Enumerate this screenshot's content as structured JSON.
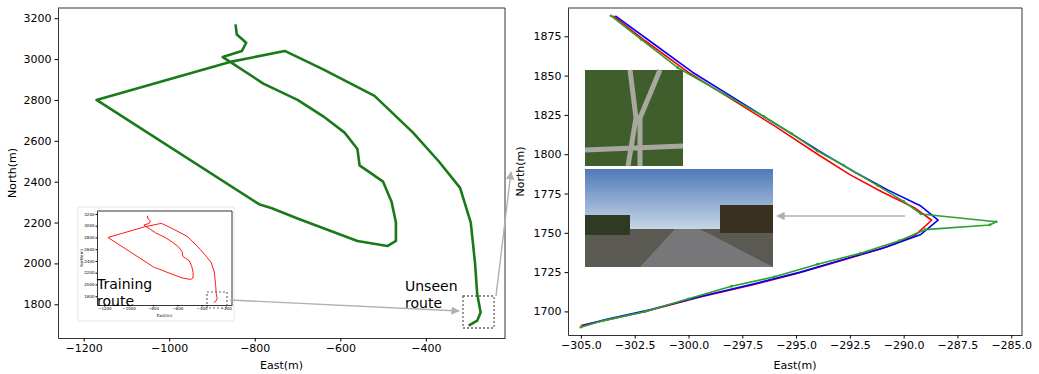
{
  "chart_data": [
    {
      "type": "line",
      "x_label": "East(m)",
      "y_label": "North(m)",
      "xlim": [
        -1260,
        -215
      ],
      "ylim": [
        1635,
        3250
      ],
      "xticks": [
        {
          "value": -1200,
          "label": "−1200"
        },
        {
          "value": -1000,
          "label": "−1000"
        },
        {
          "value": -800,
          "label": "−800"
        },
        {
          "value": -600,
          "label": "−600"
        },
        {
          "value": -400,
          "label": "−400"
        }
      ],
      "yticks": [
        1800,
        2000,
        2200,
        2400,
        2600,
        2800,
        3000,
        3200
      ],
      "annotations": [
        {
          "text": "Unseen\nroute"
        }
      ],
      "series": [
        {
          "color": "#1a7a1a",
          "x": [
            -845,
            -842,
            -820,
            -830,
            -875,
            -860,
            -780,
            -700,
            -640,
            -590,
            -560,
            -555,
            -500,
            -480,
            -470,
            -470,
            -490,
            -560,
            -700,
            -760,
            -790,
            -1170,
            -860,
            -730,
            -640,
            -520,
            -430,
            -370,
            -320,
            -295,
            -285,
            -280,
            -272,
            -280,
            -300
          ],
          "values": [
            3170,
            3120,
            3080,
            3040,
            3010,
            2990,
            2880,
            2800,
            2720,
            2640,
            2560,
            2480,
            2400,
            2300,
            2200,
            2110,
            2085,
            2110,
            2220,
            2270,
            2290,
            2800,
            2985,
            3040,
            2950,
            2820,
            2640,
            2500,
            2370,
            2200,
            2000,
            1850,
            1760,
            1720,
            1695
          ]
        }
      ]
    },
    {
      "type": "line",
      "x_label": "East(m)",
      "y_label": "North(m)",
      "xlim": [
        -1260,
        -150
      ],
      "ylim": [
        1650,
        3250
      ],
      "xticks": [
        {
          "value": -1200,
          "label": "−1200"
        },
        {
          "value": -1000,
          "label": "−1000"
        },
        {
          "value": -800,
          "label": "−800"
        },
        {
          "value": -600,
          "label": "−600"
        },
        {
          "value": -400,
          "label": "−400"
        },
        {
          "value": -200,
          "label": "−200"
        }
      ],
      "yticks": [
        1800,
        2000,
        2200,
        2400,
        2600,
        2800,
        3000,
        3200
      ],
      "annotations": [
        {
          "text": "Training\nroute"
        }
      ],
      "series": [
        {
          "color": "#ff0000",
          "x": [
            -845,
            -842,
            -820,
            -830,
            -875,
            -860,
            -780,
            -700,
            -640,
            -590,
            -560,
            -555,
            -500,
            -480,
            -470,
            -470,
            -490,
            -560,
            -700,
            -760,
            -790,
            -1170,
            -860,
            -730,
            -640,
            -520,
            -430,
            -370,
            -320,
            -295,
            -285,
            -280,
            -272,
            -280,
            -300
          ],
          "values": [
            3170,
            3120,
            3080,
            3040,
            3010,
            2990,
            2880,
            2800,
            2720,
            2640,
            2560,
            2480,
            2400,
            2300,
            2200,
            2110,
            2085,
            2110,
            2220,
            2270,
            2290,
            2800,
            2985,
            3040,
            2950,
            2820,
            2640,
            2500,
            2370,
            2200,
            2000,
            1850,
            1760,
            1720,
            1695
          ]
        }
      ]
    },
    {
      "type": "line",
      "x_label": "East(m)",
      "y_label": "North(m)",
      "xlim": [
        -305.6,
        -284.5
      ],
      "ylim": [
        1685,
        1893
      ],
      "xticks": [
        {
          "value": -305,
          "label": "−305.0"
        },
        {
          "value": -302.5,
          "label": "−302.5"
        },
        {
          "value": -300,
          "label": "−300.0"
        },
        {
          "value": -297.5,
          "label": "−297.5"
        },
        {
          "value": -295,
          "label": "−295.0"
        },
        {
          "value": -292.5,
          "label": "−292.5"
        },
        {
          "value": -290,
          "label": "−290.0"
        },
        {
          "value": -287.5,
          "label": "−287.5"
        },
        {
          "value": -285,
          "label": "−285.0"
        }
      ],
      "yticks": [
        1700,
        1725,
        1750,
        1775,
        1800,
        1825,
        1850,
        1875
      ],
      "series": [
        {
          "color": "#ff0000",
          "x": [
            -303.5,
            -302,
            -300,
            -298,
            -296,
            -294,
            -292.5,
            -291,
            -289.5,
            -288.7,
            -289.5,
            -291,
            -293,
            -295,
            -297,
            -299.5,
            -302,
            -304,
            -305
          ],
          "values": [
            1888,
            1872,
            1852,
            1835,
            1818,
            1800,
            1787,
            1776,
            1766,
            1758,
            1748,
            1740,
            1732,
            1724,
            1717,
            1709,
            1700,
            1694,
            1691
          ]
        },
        {
          "color": "#0000ff",
          "x": [
            -303.4,
            -301.8,
            -299.8,
            -297.8,
            -295.8,
            -293.8,
            -292.2,
            -290.7,
            -289.2,
            -288.4,
            -289.2,
            -290.8,
            -292.8,
            -294.8,
            -296.8,
            -299.3,
            -301.8,
            -303.8,
            -304.9
          ],
          "values": [
            1888,
            1872,
            1852,
            1835,
            1818,
            1801,
            1788,
            1777,
            1767,
            1758,
            1749,
            1741,
            1733,
            1725,
            1718,
            1710,
            1701,
            1695,
            1691
          ]
        },
        {
          "color": "#2ca02c",
          "marker": "o",
          "x": [
            -303.6,
            -302.2,
            -300.5,
            -298.3,
            -296.5,
            -295.2,
            -294,
            -292.8,
            -291.2,
            -290,
            -289.2,
            -285.7,
            -286,
            -289,
            -290.2,
            -292,
            -294,
            -296,
            -298,
            -300,
            -302,
            -304,
            -305
          ],
          "values": [
            1888,
            1873,
            1855,
            1838,
            1824,
            1813,
            1802,
            1793,
            1780,
            1770,
            1762,
            1757,
            1755,
            1752,
            1745,
            1737,
            1730,
            1722,
            1716,
            1708,
            1700,
            1694,
            1690
          ]
        }
      ]
    }
  ]
}
